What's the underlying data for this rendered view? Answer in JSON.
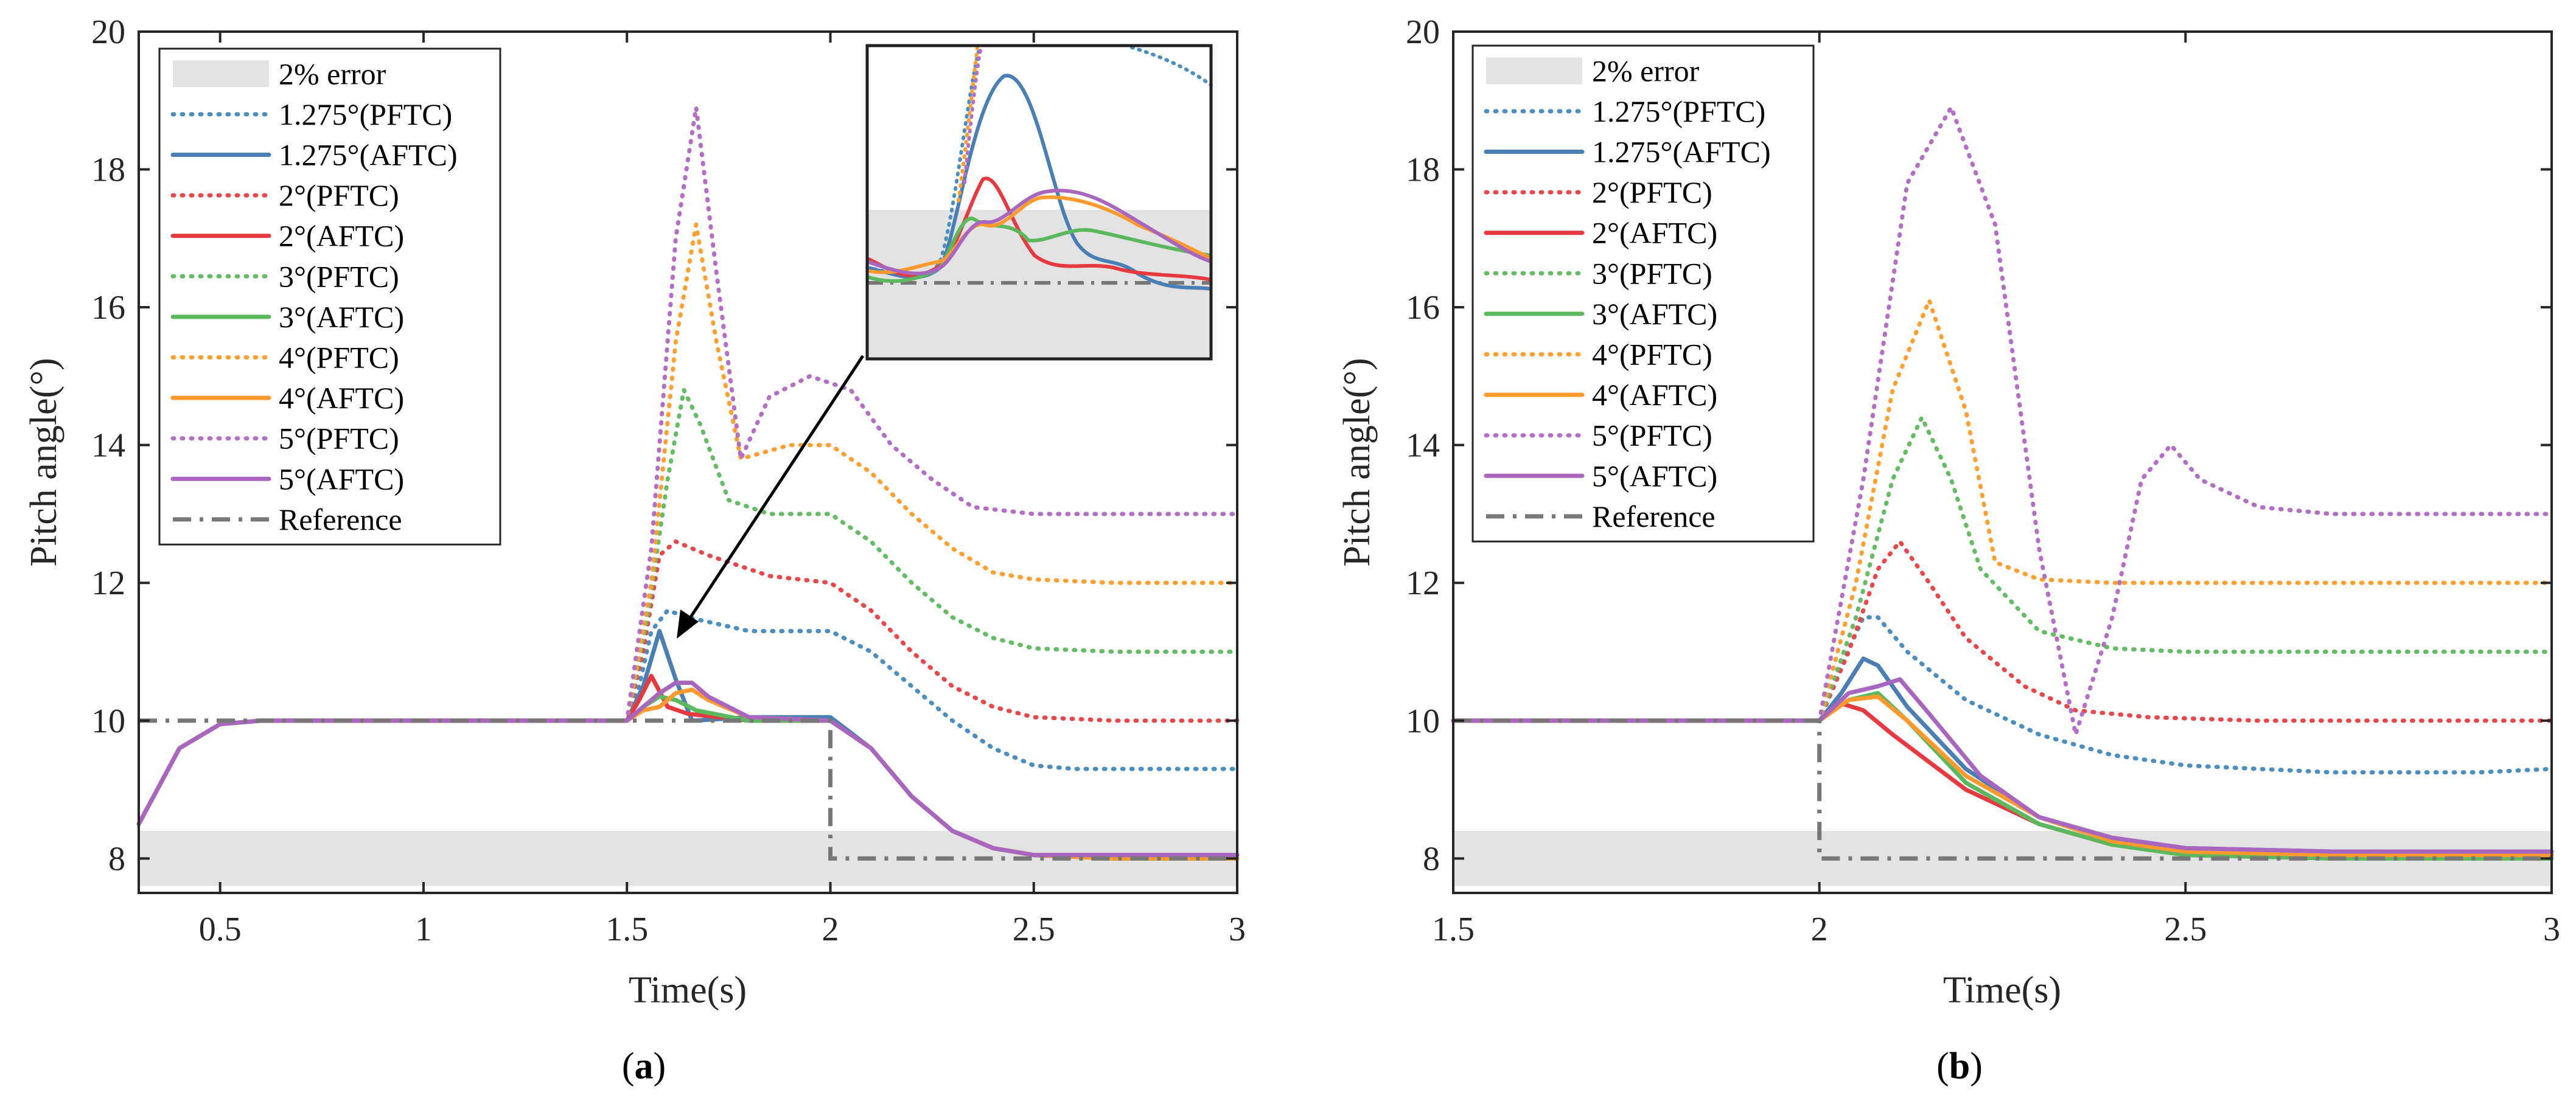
{
  "chart_data": [
    {
      "panel": "a",
      "type": "line",
      "caption_letter": "a",
      "xlabel": "Time(s)",
      "ylabel": "Pitch angle(°)",
      "xlim": [
        0.3,
        3
      ],
      "ylim": [
        7.5,
        20
      ],
      "xticks": [
        "0.5",
        "1",
        "1.5",
        "2",
        "2.5",
        "3"
      ],
      "xtick_values": [
        0.5,
        1,
        1.5,
        2,
        2.5,
        3
      ],
      "yticks": [
        "8",
        "10",
        "12",
        "14",
        "16",
        "18",
        "20"
      ],
      "ytick_values": [
        8,
        10,
        12,
        14,
        16,
        18,
        20
      ],
      "error_band": {
        "label": "2% error",
        "range": [
          7.6,
          8.4
        ]
      },
      "reference": {
        "name": "Reference",
        "x": [
          0.3,
          2.0,
          2.0,
          3.0
        ],
        "y": [
          10,
          10,
          8,
          8
        ]
      },
      "series": [
        {
          "name": "1.275°(PFTC)",
          "color": "#4c8ebd",
          "style": "dotted",
          "x": [
            0.3,
            0.4,
            0.5,
            0.6,
            1.0,
            1.5,
            1.53,
            1.56,
            1.6,
            1.65,
            1.8,
            2.0,
            2.1,
            2.2,
            2.3,
            2.4,
            2.5,
            2.6,
            2.8,
            3.0
          ],
          "y": [
            8.5,
            9.6,
            9.95,
            10,
            10,
            10,
            10.5,
            11.3,
            11.6,
            11.5,
            11.3,
            11.3,
            11.0,
            10.5,
            10.0,
            9.6,
            9.35,
            9.3,
            9.3,
            9.3
          ]
        },
        {
          "name": "1.275°(AFTC)",
          "color": "#4a7fb5",
          "style": "solid",
          "x": [
            0.3,
            0.4,
            0.5,
            0.6,
            1.0,
            1.5,
            1.54,
            1.58,
            1.62,
            1.66,
            1.8,
            2.0,
            2.1,
            2.2,
            2.3,
            2.4,
            2.5,
            2.7,
            3.0
          ],
          "y": [
            8.5,
            9.6,
            9.95,
            10,
            10,
            10,
            10.5,
            11.3,
            10.6,
            10.0,
            10.05,
            10.05,
            9.6,
            8.9,
            8.4,
            8.15,
            8.05,
            8.05,
            8.05
          ]
        },
        {
          "name": "2°(PFTC)",
          "color": "#e8474b",
          "style": "dotted",
          "x": [
            0.3,
            0.4,
            0.5,
            0.6,
            1.0,
            1.5,
            1.54,
            1.58,
            1.62,
            1.7,
            1.85,
            2.0,
            2.1,
            2.2,
            2.3,
            2.4,
            2.5,
            2.7,
            3.0
          ],
          "y": [
            8.5,
            9.6,
            9.95,
            10,
            10,
            10,
            11.0,
            12.4,
            12.6,
            12.4,
            12.1,
            12.0,
            11.6,
            11.0,
            10.5,
            10.2,
            10.05,
            10.0,
            10.0
          ]
        },
        {
          "name": "2°(AFTC)",
          "color": "#e63a40",
          "style": "solid",
          "x": [
            0.3,
            0.4,
            0.5,
            0.6,
            1.0,
            1.5,
            1.53,
            1.56,
            1.6,
            1.65,
            1.8,
            2.0,
            2.1,
            2.2,
            2.3,
            2.4,
            2.5,
            2.7,
            3.0
          ],
          "y": [
            8.5,
            9.6,
            9.95,
            10,
            10,
            10,
            10.3,
            10.65,
            10.2,
            10.1,
            10.0,
            10.0,
            9.6,
            8.9,
            8.4,
            8.15,
            8.05,
            8.0,
            8.0
          ]
        },
        {
          "name": "3°(PFTC)",
          "color": "#66bb66",
          "style": "dotted",
          "x": [
            0.3,
            0.4,
            0.5,
            0.6,
            1.0,
            1.5,
            1.55,
            1.6,
            1.64,
            1.68,
            1.75,
            1.85,
            2.0,
            2.1,
            2.2,
            2.3,
            2.4,
            2.5,
            2.7,
            3.0
          ],
          "y": [
            8.5,
            9.6,
            9.95,
            10,
            10,
            10,
            11.5,
            13.5,
            14.8,
            14.3,
            13.2,
            13.0,
            13.0,
            12.6,
            12.0,
            11.5,
            11.2,
            11.05,
            11.0,
            11.0
          ]
        },
        {
          "name": "3°(AFTC)",
          "color": "#5cb85c",
          "style": "solid",
          "x": [
            0.3,
            0.4,
            0.5,
            0.6,
            1.0,
            1.5,
            1.54,
            1.58,
            1.62,
            1.67,
            1.8,
            2.0,
            2.1,
            2.2,
            2.3,
            2.4,
            2.5,
            2.7,
            3.0
          ],
          "y": [
            8.5,
            9.6,
            9.95,
            10,
            10,
            10,
            10.2,
            10.35,
            10.3,
            10.15,
            10.0,
            10.0,
            9.6,
            8.9,
            8.4,
            8.15,
            8.05,
            8.0,
            8.0
          ]
        },
        {
          "name": "4°(PFTC)",
          "color": "#ffa033",
          "style": "dotted",
          "x": [
            0.3,
            0.4,
            0.5,
            0.6,
            1.0,
            1.5,
            1.56,
            1.62,
            1.67,
            1.72,
            1.78,
            1.9,
            2.0,
            2.1,
            2.2,
            2.3,
            2.4,
            2.5,
            2.7,
            3.0
          ],
          "y": [
            8.5,
            9.6,
            9.95,
            10,
            10,
            10,
            12.0,
            15.5,
            17.2,
            15.5,
            13.8,
            14.0,
            14.0,
            13.6,
            13.0,
            12.5,
            12.15,
            12.05,
            12.0,
            12.0
          ]
        },
        {
          "name": "4°(AFTC)",
          "color": "#ff9a2e",
          "style": "solid",
          "x": [
            0.3,
            0.4,
            0.5,
            0.6,
            1.0,
            1.5,
            1.54,
            1.58,
            1.62,
            1.66,
            1.7,
            1.8,
            2.0,
            2.1,
            2.2,
            2.3,
            2.4,
            2.5,
            2.7,
            3.0
          ],
          "y": [
            8.5,
            9.6,
            9.95,
            10,
            10,
            10,
            10.15,
            10.2,
            10.4,
            10.45,
            10.3,
            10.05,
            10.0,
            9.6,
            8.9,
            8.4,
            8.15,
            8.05,
            8.0,
            8.0
          ]
        },
        {
          "name": "5°(PFTC)",
          "color": "#b36fc4",
          "style": "dotted",
          "x": [
            0.3,
            0.4,
            0.5,
            0.6,
            1.0,
            1.5,
            1.56,
            1.62,
            1.67,
            1.72,
            1.78,
            1.85,
            1.95,
            2.05,
            2.15,
            2.25,
            2.35,
            2.5,
            2.7,
            3.0
          ],
          "y": [
            8.5,
            9.6,
            9.95,
            10,
            10,
            10,
            12.5,
            17.0,
            18.9,
            16.5,
            13.8,
            14.7,
            15.0,
            14.8,
            14.0,
            13.5,
            13.1,
            13.0,
            13.0,
            13.0
          ]
        },
        {
          "name": "5°(AFTC)",
          "color": "#a866bf",
          "style": "solid",
          "x": [
            0.3,
            0.4,
            0.5,
            0.6,
            1.0,
            1.5,
            1.54,
            1.58,
            1.62,
            1.66,
            1.7,
            1.8,
            2.0,
            2.1,
            2.2,
            2.3,
            2.4,
            2.5,
            2.7,
            3.0
          ],
          "y": [
            8.5,
            9.6,
            9.95,
            10,
            10,
            10,
            10.2,
            10.4,
            10.55,
            10.55,
            10.35,
            10.05,
            10.0,
            9.6,
            8.9,
            8.4,
            8.15,
            8.05,
            8.05,
            8.05
          ]
        }
      ]
    },
    {
      "panel": "b",
      "type": "line",
      "caption_letter": "b",
      "xlabel": "Time(s)",
      "ylabel": "Pitch angle(°)",
      "xlim": [
        1.5,
        3
      ],
      "ylim": [
        7.5,
        20
      ],
      "xticks": [
        "1.5",
        "2",
        "2.5",
        "3"
      ],
      "xtick_values": [
        1.5,
        2,
        2.5,
        3
      ],
      "yticks": [
        "8",
        "10",
        "12",
        "14",
        "16",
        "18",
        "20"
      ],
      "ytick_values": [
        8,
        10,
        12,
        14,
        16,
        18,
        20
      ],
      "error_band": {
        "label": "2% error",
        "range": [
          7.6,
          8.4
        ]
      },
      "reference": {
        "name": "Reference",
        "x": [
          1.5,
          2.0,
          2.0,
          3.0
        ],
        "y": [
          10,
          10,
          8,
          8
        ]
      },
      "series": [
        {
          "name": "1.275°(PFTC)",
          "color": "#4c8ebd",
          "style": "dotted",
          "x": [
            1.5,
            1.8,
            2.0,
            2.03,
            2.06,
            2.08,
            2.12,
            2.2,
            2.3,
            2.4,
            2.5,
            2.6,
            2.7,
            2.8,
            2.9,
            3.0
          ],
          "y": [
            10,
            10,
            10,
            10.8,
            11.5,
            11.5,
            11.0,
            10.3,
            9.8,
            9.5,
            9.35,
            9.3,
            9.25,
            9.25,
            9.25,
            9.3
          ]
        },
        {
          "name": "1.275°(AFTC)",
          "color": "#4a7fb5",
          "style": "solid",
          "x": [
            1.5,
            1.8,
            2.0,
            2.03,
            2.06,
            2.08,
            2.12,
            2.2,
            2.3,
            2.4,
            2.5,
            2.7,
            3.0
          ],
          "y": [
            10,
            10,
            10,
            10.4,
            10.9,
            10.8,
            10.2,
            9.3,
            8.6,
            8.3,
            8.15,
            8.1,
            8.1
          ]
        },
        {
          "name": "2°(PFTC)",
          "color": "#e8474b",
          "style": "dotted",
          "x": [
            1.5,
            1.8,
            2.0,
            2.04,
            2.08,
            2.11,
            2.15,
            2.2,
            2.28,
            2.35,
            2.45,
            2.6,
            2.8,
            3.0
          ],
          "y": [
            10,
            10,
            10,
            11.0,
            12.2,
            12.6,
            12.0,
            11.2,
            10.5,
            10.15,
            10.05,
            10.0,
            10.0,
            10.0
          ]
        },
        {
          "name": "2°(AFTC)",
          "color": "#e63a40",
          "style": "solid",
          "x": [
            1.5,
            1.8,
            2.0,
            2.03,
            2.06,
            2.1,
            2.2,
            2.3,
            2.4,
            2.5,
            2.7,
            3.0
          ],
          "y": [
            10,
            10,
            10,
            10.25,
            10.15,
            9.8,
            9.0,
            8.5,
            8.2,
            8.1,
            8.05,
            8.05
          ]
        },
        {
          "name": "3°(PFTC)",
          "color": "#66bb66",
          "style": "dotted",
          "x": [
            1.5,
            1.8,
            2.0,
            2.05,
            2.1,
            2.14,
            2.18,
            2.22,
            2.3,
            2.4,
            2.5,
            2.7,
            3.0
          ],
          "y": [
            10,
            10,
            10,
            11.5,
            13.5,
            14.4,
            13.5,
            12.2,
            11.3,
            11.05,
            11.0,
            11.0,
            11.0
          ]
        },
        {
          "name": "3°(AFTC)",
          "color": "#5cb85c",
          "style": "solid",
          "x": [
            1.5,
            1.8,
            2.0,
            2.04,
            2.08,
            2.12,
            2.2,
            2.3,
            2.4,
            2.5,
            2.7,
            3.0
          ],
          "y": [
            10,
            10,
            10,
            10.3,
            10.4,
            10.0,
            9.1,
            8.5,
            8.2,
            8.05,
            8.0,
            8.0
          ]
        },
        {
          "name": "4°(PFTC)",
          "color": "#ffa033",
          "style": "dotted",
          "x": [
            1.5,
            1.8,
            2.0,
            2.05,
            2.1,
            2.15,
            2.2,
            2.24,
            2.3,
            2.4,
            2.5,
            2.7,
            3.0
          ],
          "y": [
            10,
            10,
            10,
            12.0,
            14.8,
            16.1,
            14.5,
            12.3,
            12.05,
            12.0,
            12.0,
            12.0,
            12.0
          ]
        },
        {
          "name": "4°(AFTC)",
          "color": "#ff9a2e",
          "style": "solid",
          "x": [
            1.5,
            1.8,
            2.0,
            2.04,
            2.08,
            2.12,
            2.2,
            2.3,
            2.4,
            2.5,
            2.7,
            3.0
          ],
          "y": [
            10,
            10,
            10,
            10.3,
            10.35,
            10.0,
            9.2,
            8.6,
            8.25,
            8.1,
            8.05,
            8.05
          ]
        },
        {
          "name": "5°(PFTC)",
          "color": "#b36fc4",
          "style": "dotted",
          "x": [
            1.5,
            1.8,
            2.0,
            2.06,
            2.12,
            2.18,
            2.24,
            2.3,
            2.35,
            2.4,
            2.44,
            2.48,
            2.52,
            2.6,
            2.7,
            2.8,
            3.0
          ],
          "y": [
            10,
            10,
            10,
            13.5,
            17.8,
            18.9,
            17.2,
            12.5,
            9.8,
            11.5,
            13.5,
            14.0,
            13.5,
            13.1,
            13.0,
            13.0,
            13.0
          ]
        },
        {
          "name": "5°(AFTC)",
          "color": "#a866bf",
          "style": "solid",
          "x": [
            1.5,
            1.8,
            2.0,
            2.04,
            2.08,
            2.11,
            2.15,
            2.22,
            2.3,
            2.4,
            2.5,
            2.7,
            3.0
          ],
          "y": [
            10,
            10,
            10,
            10.4,
            10.5,
            10.6,
            10.1,
            9.2,
            8.6,
            8.3,
            8.15,
            8.1,
            8.1
          ]
        }
      ]
    }
  ]
}
